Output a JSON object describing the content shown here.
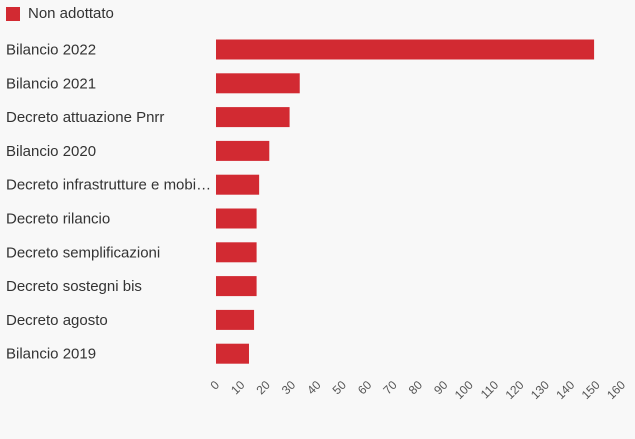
{
  "legend": {
    "label": "Non adottato",
    "color": "#d22a32"
  },
  "chart_data": {
    "type": "bar",
    "orientation": "horizontal",
    "title": "",
    "xlabel": "",
    "ylabel": "",
    "categories": [
      "Bilancio 2022",
      "Bilancio 2021",
      "Decreto attuazione Pnrr",
      "Bilancio 2020",
      "Decreto infrastrutture e mobi…",
      "Decreto rilancio",
      "Decreto semplificazioni",
      "Decreto sostegni bis",
      "Decreto agosto",
      "Bilancio 2019"
    ],
    "series": [
      {
        "name": "Non adottato",
        "color": "#d22a32",
        "values": [
          149,
          33,
          29,
          21,
          17,
          16,
          16,
          16,
          15,
          13
        ]
      }
    ],
    "xlim": [
      0,
      160
    ],
    "ticks": [
      0,
      10,
      20,
      30,
      40,
      50,
      60,
      70,
      80,
      90,
      100,
      110,
      120,
      130,
      140,
      150,
      160
    ],
    "grid": false,
    "legend_position": "top-left"
  }
}
